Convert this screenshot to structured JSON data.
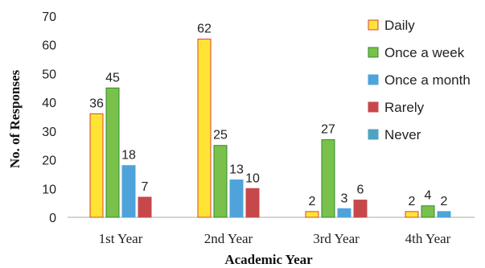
{
  "chart_data": {
    "type": "bar",
    "xlabel": "Academic Year",
    "ylabel": "No. of Responses",
    "ylim": [
      0,
      70
    ],
    "yticks": [
      0,
      10,
      20,
      30,
      40,
      50,
      60,
      70
    ],
    "grid": false,
    "legend_position": "top-right",
    "categories": [
      "1st Year",
      "2nd Year",
      "3rd Year",
      "4th Year"
    ],
    "series": [
      {
        "name": "Daily",
        "color": "#FFE434",
        "stroke": "#D9413A",
        "values": [
          36,
          62,
          2,
          2
        ]
      },
      {
        "name": "Once a week",
        "color": "#79C14A",
        "stroke": "#2E8B2E",
        "values": [
          45,
          25,
          27,
          4
        ]
      },
      {
        "name": "Once a month",
        "color": "#4EA3DB",
        "stroke": "#4EA3DB",
        "values": [
          18,
          13,
          3,
          2
        ]
      },
      {
        "name": "Rarely",
        "color": "#C7484B",
        "stroke": "#C7484B",
        "values": [
          7,
          10,
          6,
          null
        ]
      },
      {
        "name": "Never",
        "color": "#4FA3C2",
        "stroke": "#4FA3C2",
        "values": [
          null,
          null,
          null,
          null
        ]
      }
    ]
  }
}
